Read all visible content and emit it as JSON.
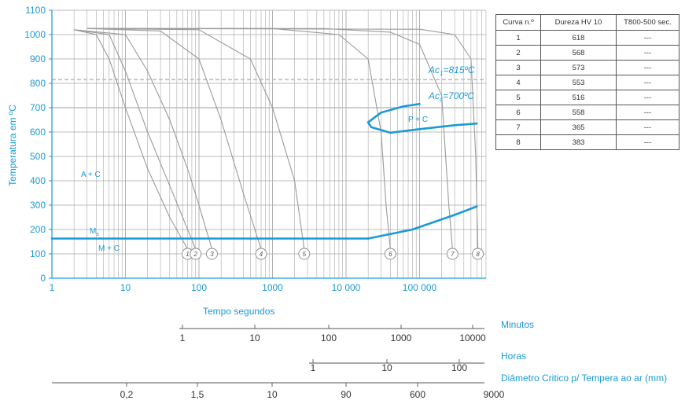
{
  "chart_data": {
    "type": "line",
    "ylabel": "Temperatura em ºC",
    "ylim": [
      0,
      1100
    ],
    "xscale": "log",
    "xlim": [
      1,
      600000
    ],
    "x_ticks": [
      {
        "value": 1,
        "label": "1"
      },
      {
        "value": 10,
        "label": "10"
      },
      {
        "value": 100,
        "label": "100"
      },
      {
        "value": 1000,
        "label": "1000"
      },
      {
        "value": 10000,
        "label": "10 000"
      },
      {
        "value": 100000,
        "label": "100 000"
      }
    ],
    "y_ticks": [
      0,
      100,
      200,
      300,
      400,
      500,
      600,
      700,
      800,
      900,
      1000,
      1100
    ],
    "grid": true,
    "cooling_curves": [
      {
        "id": "1",
        "points": [
          [
            2,
            1020
          ],
          [
            4,
            1000
          ],
          [
            6,
            900
          ],
          [
            10,
            700
          ],
          [
            20,
            450
          ],
          [
            40,
            250
          ],
          [
            70,
            120
          ]
        ]
      },
      {
        "id": "2",
        "points": [
          [
            2,
            1020
          ],
          [
            6,
            1000
          ],
          [
            10,
            850
          ],
          [
            20,
            600
          ],
          [
            40,
            380
          ],
          [
            60,
            250
          ],
          [
            90,
            120
          ]
        ]
      },
      {
        "id": "3",
        "points": [
          [
            2,
            1020
          ],
          [
            10,
            1000
          ],
          [
            20,
            850
          ],
          [
            40,
            650
          ],
          [
            70,
            450
          ],
          [
            100,
            300
          ],
          [
            150,
            120
          ]
        ]
      },
      {
        "id": "4",
        "points": [
          [
            3,
            1025
          ],
          [
            30,
            1015
          ],
          [
            100,
            900
          ],
          [
            200,
            650
          ],
          [
            400,
            350
          ],
          [
            700,
            120
          ]
        ]
      },
      {
        "id": "5",
        "points": [
          [
            3,
            1025
          ],
          [
            100,
            1020
          ],
          [
            500,
            900
          ],
          [
            1000,
            700
          ],
          [
            2000,
            400
          ],
          [
            2700,
            120
          ]
        ]
      },
      {
        "id": "6",
        "points": [
          [
            3,
            1025
          ],
          [
            1000,
            1025
          ],
          [
            8000,
            1000
          ],
          [
            20000,
            900
          ],
          [
            30000,
            600
          ],
          [
            35000,
            300
          ],
          [
            40000,
            120
          ]
        ]
      },
      {
        "id": "7",
        "points": [
          [
            3,
            1025
          ],
          [
            5000,
            1025
          ],
          [
            40000,
            1010
          ],
          [
            100000,
            960
          ],
          [
            200000,
            750
          ],
          [
            250000,
            300
          ],
          [
            280000,
            120
          ]
        ]
      },
      {
        "id": "8",
        "points": [
          [
            3,
            1025
          ],
          [
            100000,
            1022
          ],
          [
            300000,
            1000
          ],
          [
            500000,
            900
          ],
          [
            580000,
            500
          ],
          [
            620000,
            120
          ]
        ]
      }
    ],
    "transformation_lines": [
      {
        "name": "Ms",
        "points": [
          [
            1,
            163
          ],
          [
            20000,
            163
          ]
        ]
      },
      {
        "name": "Ms (end)",
        "points": [
          [
            20000,
            163
          ],
          [
            80000,
            200
          ],
          [
            300000,
            260
          ],
          [
            600000,
            295
          ]
        ]
      },
      {
        "name": "P + C start",
        "points": [
          [
            20000,
            640
          ],
          [
            30000,
            680
          ],
          [
            60000,
            705
          ],
          [
            100000,
            715
          ]
        ]
      },
      {
        "name": "P + C nose",
        "points": [
          [
            20000,
            640
          ],
          [
            22000,
            620
          ],
          [
            40000,
            597
          ]
        ]
      },
      {
        "name": "P + C end",
        "points": [
          [
            40000,
            597
          ],
          [
            100000,
            612
          ],
          [
            300000,
            628
          ],
          [
            600000,
            635
          ]
        ]
      }
    ],
    "reference_lines": [
      {
        "label_main": "Ac",
        "label_sub": "1",
        "label_value": "=815ºC",
        "y": 815
      },
      {
        "label_main": "Ac",
        "label_sub": "c",
        "label_value": "=700ºC",
        "y": 700
      }
    ],
    "region_labels": {
      "ac": "A + C",
      "pc": "P + C",
      "ms_main": "M",
      "ms_sub": "s",
      "mc": "M + C"
    },
    "xlabel": "Tempo segundos"
  },
  "secondary_axes": [
    {
      "label": "Minutos",
      "ticks": [
        "1",
        "10",
        "100",
        "1000",
        "10000"
      ]
    },
    {
      "label": "Horas",
      "ticks": [
        "1",
        "10",
        "100"
      ]
    },
    {
      "label": "Diâmetro Critico p/ Tempera ao ar (mm)",
      "ticks": [
        "0,2",
        "1,5",
        "10",
        "90",
        "600",
        "9000"
      ]
    }
  ],
  "table": {
    "headers": [
      "Curva n.º",
      "Dureza HV 10",
      "T800-500 sec."
    ],
    "rows": [
      [
        "1",
        "618",
        "---"
      ],
      [
        "2",
        "568",
        "---"
      ],
      [
        "3",
        "573",
        "---"
      ],
      [
        "4",
        "553",
        "---"
      ],
      [
        "5",
        "516",
        "---"
      ],
      [
        "6",
        "558",
        "---"
      ],
      [
        "7",
        "365",
        "---"
      ],
      [
        "8",
        "383",
        "---"
      ]
    ]
  },
  "colors": {
    "accent": "#1a9ad6",
    "grid": "#a9a9a9",
    "curve": "#9a9a9a",
    "text": "#333333"
  }
}
